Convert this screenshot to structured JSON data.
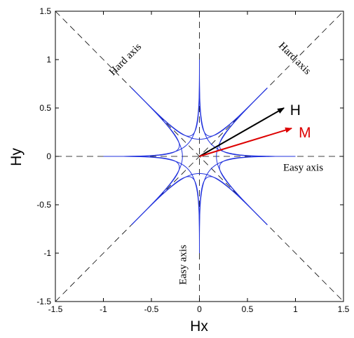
{
  "chart_data": {
    "type": "line",
    "title": "",
    "xlabel": "Hx",
    "ylabel": "Hy",
    "xlim": [
      -1.5,
      1.5
    ],
    "ylim": [
      -1.5,
      1.5
    ],
    "xticks": [
      -1.5,
      -1,
      -0.5,
      0,
      0.5,
      1,
      1.5
    ],
    "yticks": [
      -1.5,
      -1,
      -0.5,
      0,
      0.5,
      1,
      1.5
    ],
    "xtick_labels": [
      "-1.5",
      "-1",
      "-0.5",
      "0",
      "0.5",
      "1",
      "1.5"
    ],
    "ytick_labels": [
      "-1.5",
      "-1",
      "-0.5",
      "0",
      "0.5",
      "1",
      "1.5"
    ],
    "grid": false,
    "series": [
      {
        "color": "#2233dd",
        "curve": "star-astroid",
        "tips": [
          [
            1,
            0
          ],
          [
            0.707,
            0.707
          ],
          [
            0,
            1
          ],
          [
            -0.707,
            0.707
          ],
          [
            -1,
            0
          ],
          [
            -0.707,
            -0.707
          ],
          [
            0,
            -1
          ],
          [
            0.707,
            -0.707
          ]
        ]
      }
    ],
    "reference_lines": [
      {
        "from": [
          -1.5,
          -1.5
        ],
        "to": [
          1.5,
          1.5
        ],
        "style": "dashed"
      },
      {
        "from": [
          -1.5,
          1.5
        ],
        "to": [
          1.5,
          -1.5
        ],
        "style": "dashed"
      },
      {
        "from": [
          -1.5,
          0
        ],
        "to": [
          1.5,
          0
        ],
        "style": "dashed"
      },
      {
        "from": [
          0,
          -1.5
        ],
        "to": [
          0,
          1.5
        ],
        "style": "dashed"
      }
    ],
    "annotations": [
      {
        "text": "Hard axis",
        "x": -0.75,
        "y": 0.98,
        "angle_deg": -45
      },
      {
        "text": "Hard axis",
        "x": 0.97,
        "y": 0.99,
        "angle_deg": 45
      },
      {
        "text": "Easy axis",
        "x": 1.08,
        "y": -0.15,
        "angle_deg": 0
      },
      {
        "text": "Easy axis",
        "x": -0.14,
        "y": -1.12,
        "angle_deg": -90
      }
    ],
    "vectors": [
      {
        "label": "H",
        "from": [
          0,
          0
        ],
        "to": [
          0.88,
          0.5
        ],
        "color": "#000000",
        "label_pos": [
          0.9,
          0.47
        ]
      },
      {
        "label": "M",
        "from": [
          0,
          0
        ],
        "to": [
          0.96,
          0.29
        ],
        "color": "#dd0000",
        "label_pos": [
          0.99,
          0.24
        ]
      }
    ]
  }
}
